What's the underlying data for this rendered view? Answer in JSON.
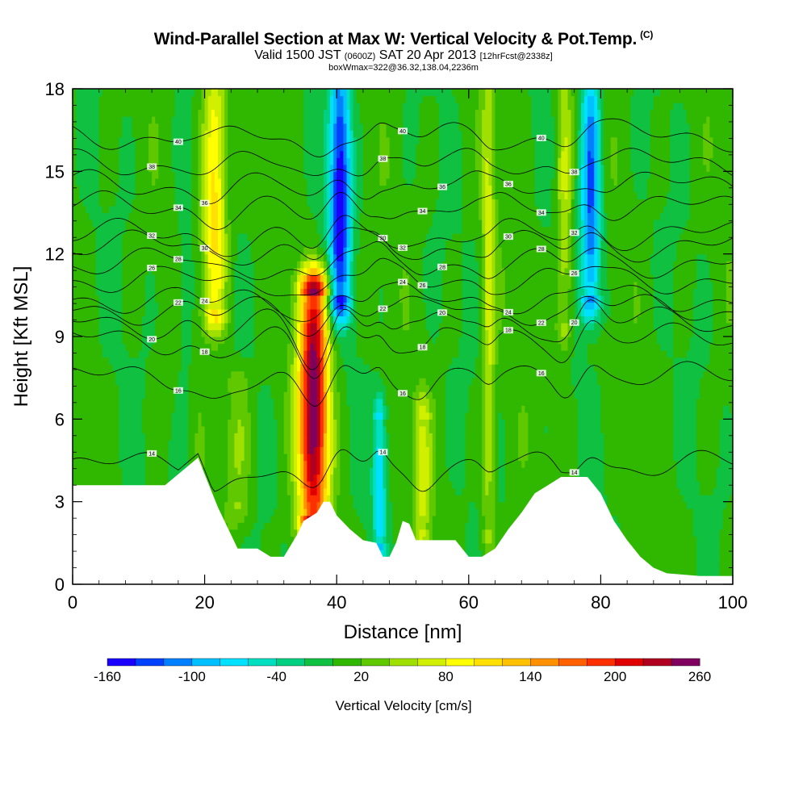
{
  "header": {
    "title": "Wind-Parallel Section at Max W: Vertical Velocity & Pot.Temp.",
    "title_mark": "(C)",
    "subtitle_a": "Valid 1500 JST",
    "subtitle_b": "(0600Z)",
    "subtitle_c": "SAT 20 Apr 2013",
    "subtitle_d": "[12hrFcst@2338z]",
    "subtitle2": "boxWmax=322@36.32,138.04,2236m"
  },
  "chart_data": {
    "type": "heatmap",
    "title": "Wind-Parallel Section at Max W: Vertical Velocity & Pot.Temp.",
    "xlabel": "Distance [nm]",
    "ylabel": "Height [Kft MSL]",
    "xlim": [
      0,
      100
    ],
    "ylim": [
      0,
      18
    ],
    "x_ticks": [
      0,
      20,
      40,
      60,
      80,
      100
    ],
    "y_ticks": [
      0,
      3,
      6,
      9,
      12,
      15,
      18
    ],
    "colorbar": {
      "title": "Vertical Velocity [cm/s]",
      "min": -160,
      "max": 260,
      "step": 20,
      "tick_labels": [
        -160,
        -100,
        -40,
        20,
        80,
        140,
        200,
        260
      ],
      "colors": [
        "#1a00ff",
        "#0040ff",
        "#0080ff",
        "#00c0ff",
        "#00e0ff",
        "#00e0c0",
        "#00d080",
        "#10c040",
        "#30b800",
        "#60c800",
        "#a0e000",
        "#d0f000",
        "#ffff00",
        "#ffe000",
        "#ffc000",
        "#ff9000",
        "#ff6000",
        "#ff3000",
        "#e00000",
        "#b00020",
        "#800060"
      ]
    },
    "terrain_profile": {
      "x": [
        0,
        14,
        17,
        19,
        20,
        22,
        24,
        25,
        28,
        30,
        32,
        34,
        35,
        37,
        38,
        39,
        40,
        42,
        44,
        46,
        47,
        48,
        49,
        50,
        51,
        52,
        54,
        58,
        60,
        62,
        64,
        66,
        68,
        70,
        72,
        74,
        76,
        78,
        80,
        82,
        84,
        86,
        88,
        90,
        95,
        100
      ],
      "y": [
        3.6,
        3.6,
        4.2,
        4.6,
        4.0,
        2.8,
        1.8,
        1.3,
        1.3,
        1.0,
        1.0,
        1.8,
        2.3,
        2.6,
        3.0,
        3.0,
        2.5,
        2.0,
        1.6,
        1.5,
        1.0,
        1.0,
        1.5,
        2.3,
        2.2,
        1.6,
        1.6,
        1.6,
        1.0,
        1.0,
        1.3,
        2.0,
        2.6,
        3.3,
        3.6,
        3.9,
        3.9,
        3.9,
        3.3,
        2.3,
        1.6,
        1.0,
        0.6,
        0.4,
        0.3,
        0.3
      ]
    },
    "vertical_velocity_features": [
      {
        "x": 36.5,
        "y_bottom": 2.5,
        "y_top": 10.5,
        "half_width": 2.2,
        "value": 255
      },
      {
        "x": 21.5,
        "y_bottom": 10.0,
        "y_top": 18.0,
        "half_width": 1.8,
        "value": 110
      },
      {
        "x": 40.5,
        "y_bottom": 10.5,
        "y_top": 18.0,
        "half_width": 1.6,
        "value": -160
      },
      {
        "x": 78.5,
        "y_bottom": 10.5,
        "y_top": 18.0,
        "half_width": 1.5,
        "value": -130
      },
      {
        "x": 74.5,
        "y_bottom": 9.5,
        "y_top": 18.0,
        "half_width": 1.2,
        "value": 60
      },
      {
        "x": 46.5,
        "y_bottom": 1.5,
        "y_top": 6.0,
        "half_width": 1.0,
        "value": -80
      },
      {
        "x": 25.0,
        "y_bottom": 3.0,
        "y_top": 7.0,
        "half_width": 2.0,
        "value": 40
      },
      {
        "x": 53.0,
        "y_bottom": 2.0,
        "y_top": 6.0,
        "half_width": 1.3,
        "value": 60
      },
      {
        "x": 17.0,
        "y_bottom": 4.0,
        "y_top": 18.0,
        "half_width": 1.2,
        "value": -20
      },
      {
        "x": 63.0,
        "y_bottom": 2.0,
        "y_top": 18.0,
        "half_width": 1.0,
        "value": 60
      }
    ],
    "theta_contours": [
      {
        "label": "14",
        "y_left": 4.3
      },
      {
        "label": "16",
        "y_left": 7.5
      },
      {
        "label": "18",
        "y_left": 8.9
      },
      {
        "label": "20",
        "y_left": 9.5
      },
      {
        "label": "22",
        "y_left": 10.0
      },
      {
        "label": "24",
        "y_left": 10.4
      },
      {
        "label": "26",
        "y_left": 11.1
      },
      {
        "label": "28",
        "y_left": 11.7
      },
      {
        "label": "30",
        "y_left": 12.3
      },
      {
        "label": "32",
        "y_left": 12.7
      },
      {
        "label": "34",
        "y_left": 13.7
      },
      {
        "label": "36",
        "y_left": 14.5
      },
      {
        "label": "38",
        "y_left": 15.3
      },
      {
        "label": "40",
        "y_left": 16.3
      }
    ]
  }
}
